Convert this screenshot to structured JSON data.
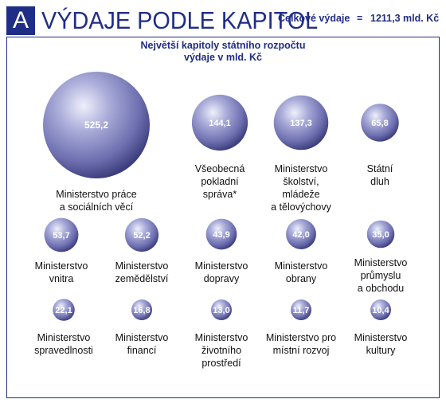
{
  "header": {
    "badge": "A",
    "title": "VÝDAJE PODLE KAPITOL",
    "total_label": "Celkové výdaje",
    "total_eq": "=",
    "total_value": "1211,3 mld. Kč"
  },
  "colors": {
    "brand": "#1f2d86",
    "bubble_light": "#e4e6f6",
    "bubble_mid": "#8b8dc6",
    "bubble_dark": "#3a3c78"
  },
  "chart_data": {
    "type": "bubble",
    "title_lines": [
      "Největší kapitoly státního rozpočtu",
      "výdaje v mld. Kč"
    ],
    "unit": "mld. Kč",
    "items": [
      {
        "value": 525.2,
        "value_label": "525,2",
        "label_lines": [
          "Ministerstvo práce",
          "a sociálních věcí"
        ]
      },
      {
        "value": 144.1,
        "value_label": "144,1",
        "label_lines": [
          "Všeobecná",
          "pokladní",
          "správa*"
        ]
      },
      {
        "value": 137.3,
        "value_label": "137,3",
        "label_lines": [
          "Ministerstvo",
          "školství,",
          "mládeže",
          "a tělovýchovy"
        ]
      },
      {
        "value": 65.8,
        "value_label": "65,8",
        "label_lines": [
          "Státní",
          "dluh"
        ]
      },
      {
        "value": 53.7,
        "value_label": "53,7",
        "label_lines": [
          "Ministerstvo",
          "vnitra"
        ]
      },
      {
        "value": 52.2,
        "value_label": "52,2",
        "label_lines": [
          "Ministerstvo",
          "zemědělství"
        ]
      },
      {
        "value": 43.9,
        "value_label": "43,9",
        "label_lines": [
          "Ministerstvo",
          "dopravy"
        ]
      },
      {
        "value": 42.0,
        "value_label": "42,0",
        "label_lines": [
          "Ministerstvo",
          "obrany"
        ]
      },
      {
        "value": 35.0,
        "value_label": "35,0",
        "label_lines": [
          "Ministerstvo",
          "průmyslu",
          "a obchodu"
        ]
      },
      {
        "value": 22.1,
        "value_label": "22,1",
        "label_lines": [
          "Ministerstvo",
          "spravedlnosti"
        ]
      },
      {
        "value": 16.8,
        "value_label": "16,8",
        "label_lines": [
          "Ministerstvo",
          "financí"
        ]
      },
      {
        "value": 13.0,
        "value_label": "13,0",
        "label_lines": [
          "Ministerstvo",
          "životního",
          "prostředí"
        ]
      },
      {
        "value": 11.7,
        "value_label": "11,7",
        "label_lines": [
          "Ministerstvo pro",
          "místní rozvoj"
        ]
      },
      {
        "value": 10.4,
        "value_label": "10,4",
        "label_lines": [
          "Ministerstvo",
          "kultury"
        ]
      }
    ]
  }
}
